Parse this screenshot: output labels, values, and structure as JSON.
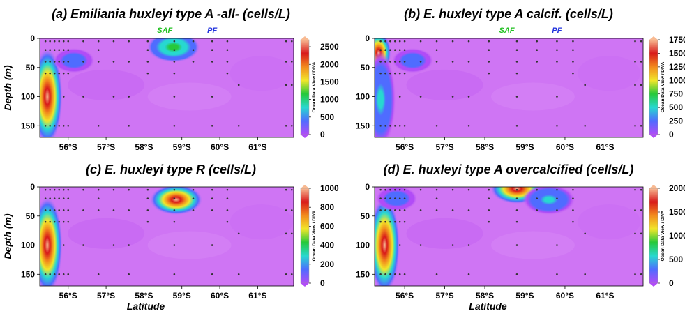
{
  "chart_data": [
    {
      "type": "heatmap",
      "panel": "a",
      "title": "(a) Emiliania huxleyi type A -all- (cells/L)",
      "xlabel": "",
      "ylabel": "Depth (m)",
      "x_ticks": [
        "56°S",
        "57°S",
        "58°S",
        "59°S",
        "60°S",
        "61°S"
      ],
      "y_ticks": [
        0,
        50,
        100,
        150
      ],
      "xlim": [
        55.25,
        61.95
      ],
      "ylim": [
        0,
        170
      ],
      "colorbar": {
        "ticks": [
          0,
          500,
          1000,
          1500,
          2000,
          2500
        ],
        "max": 2700,
        "label": "Ocean Data View / DIVA"
      },
      "fronts": [
        {
          "name": "SAF",
          "lat": 58.55,
          "color": "#22c022"
        },
        {
          "name": "PF",
          "lat": 59.8,
          "color": "#2233dd"
        }
      ],
      "features": [
        {
          "lat": 55.45,
          "depth": 100,
          "value": 2700
        },
        {
          "lat": 56.15,
          "depth": 38,
          "value": 500
        },
        {
          "lat": 58.78,
          "depth": 15,
          "value": 1300
        }
      ]
    },
    {
      "type": "heatmap",
      "panel": "b",
      "title": "(b) E. huxleyi type A calcif. (cells/L)",
      "xlabel": "",
      "ylabel": "",
      "x_ticks": [
        "56°S",
        "57°S",
        "58°S",
        "59°S",
        "60°S",
        "61°S"
      ],
      "y_ticks": [
        0,
        50,
        100,
        150
      ],
      "xlim": [
        55.25,
        61.95
      ],
      "ylim": [
        0,
        170
      ],
      "colorbar": {
        "ticks": [
          0,
          250,
          500,
          750,
          1000,
          1250,
          1500,
          1750
        ],
        "max": 1750,
        "label": "Ocean Data View / DIVA"
      },
      "fronts": [
        {
          "name": "SAF",
          "lat": 58.55,
          "color": "#22c022"
        },
        {
          "name": "PF",
          "lat": 59.8,
          "color": "#2233dd"
        }
      ],
      "features": [
        {
          "lat": 55.35,
          "depth": 25,
          "value": 1750
        },
        {
          "lat": 55.4,
          "depth": 105,
          "value": 500
        },
        {
          "lat": 56.2,
          "depth": 38,
          "value": 350
        }
      ]
    },
    {
      "type": "heatmap",
      "panel": "c",
      "title": "(c) E. huxleyi type R (cells/L)",
      "xlabel": "Latitude",
      "ylabel": "Depth (m)",
      "x_ticks": [
        "56°S",
        "57°S",
        "58°S",
        "59°S",
        "60°S",
        "61°S"
      ],
      "y_ticks": [
        0,
        50,
        100,
        150
      ],
      "xlim": [
        55.25,
        61.95
      ],
      "ylim": [
        0,
        170
      ],
      "colorbar": {
        "ticks": [
          0,
          200,
          400,
          600,
          800,
          1000
        ],
        "max": 1000,
        "label": "Ocean Data View / DIVA"
      },
      "features": [
        {
          "lat": 55.45,
          "depth": 100,
          "value": 1000
        },
        {
          "lat": 58.85,
          "depth": 22,
          "value": 1000
        }
      ]
    },
    {
      "type": "heatmap",
      "panel": "d",
      "title": "(d) E. huxleyi type A overcalcified (cells/L)",
      "xlabel": "Latitude",
      "ylabel": "",
      "x_ticks": [
        "56°S",
        "57°S",
        "58°S",
        "59°S",
        "60°S",
        "61°S"
      ],
      "y_ticks": [
        0,
        50,
        100,
        150
      ],
      "xlim": [
        55.25,
        61.95
      ],
      "ylim": [
        0,
        170
      ],
      "colorbar": {
        "ticks": [
          0,
          500,
          1000,
          1500,
          2000
        ],
        "max": 2000,
        "label": "Ocean Data View / DIVA"
      },
      "features": [
        {
          "lat": 55.5,
          "depth": 100,
          "value": 2000
        },
        {
          "lat": 55.8,
          "depth": 20,
          "value": 400
        },
        {
          "lat": 58.8,
          "depth": 3,
          "value": 2000
        },
        {
          "lat": 59.6,
          "depth": 22,
          "value": 600
        }
      ]
    }
  ],
  "stations": [
    {
      "lat": 55.4,
      "depths": [
        5,
        20,
        40,
        60,
        150
      ]
    },
    {
      "lat": 55.52,
      "depths": [
        5,
        20,
        40,
        60,
        150
      ]
    },
    {
      "lat": 55.64,
      "depths": [
        5,
        20,
        40,
        60,
        150
      ]
    },
    {
      "lat": 55.76,
      "depths": [
        5,
        20,
        40,
        60,
        150
      ]
    },
    {
      "lat": 55.88,
      "depths": [
        5,
        20,
        40,
        60,
        100,
        150
      ]
    },
    {
      "lat": 56.0,
      "depths": [
        5,
        20,
        40,
        60,
        150
      ]
    },
    {
      "lat": 56.4,
      "depths": [
        5,
        40,
        100
      ]
    },
    {
      "lat": 56.8,
      "depths": [
        5,
        20,
        40,
        150
      ]
    },
    {
      "lat": 57.2,
      "depths": [
        5,
        40,
        100
      ]
    },
    {
      "lat": 57.6,
      "depths": [
        5,
        40,
        100,
        150
      ]
    },
    {
      "lat": 58.1,
      "depths": [
        5,
        20,
        40,
        60
      ]
    },
    {
      "lat": 58.8,
      "depths": [
        5,
        20,
        40,
        60,
        100,
        150
      ]
    },
    {
      "lat": 59.3,
      "depths": [
        5,
        20,
        40
      ]
    },
    {
      "lat": 59.8,
      "depths": [
        5,
        20,
        40,
        100,
        150
      ]
    },
    {
      "lat": 60.2,
      "depths": [
        5,
        20,
        40,
        60
      ]
    },
    {
      "lat": 60.5,
      "depths": [
        80,
        150
      ]
    },
    {
      "lat": 61.75,
      "depths": [
        5,
        40,
        80,
        150
      ]
    },
    {
      "lat": 61.9,
      "depths": [
        5,
        40,
        80,
        150
      ]
    }
  ],
  "colors": {
    "background": "#cf75f4",
    "scale": [
      "#b14cf7",
      "#4f6cff",
      "#27d8d0",
      "#26c93a",
      "#f1e62a",
      "#f28a1d",
      "#d81a1a",
      "#f8ba92"
    ]
  }
}
